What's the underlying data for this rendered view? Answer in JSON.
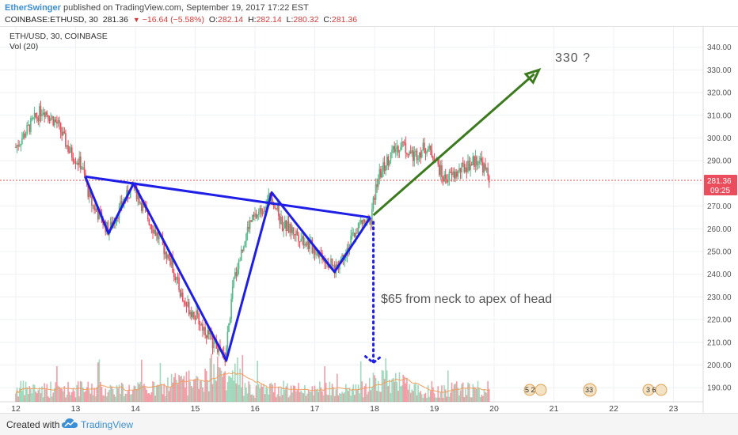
{
  "header": {
    "author": "EtherSwinger",
    "published_text": "published on TradingView.com, September 19, 2017 17:22 EST",
    "symbol": "COINBASE:ETHUSD, 30",
    "last": "281.36",
    "change": "−16.64 (−5.58%)",
    "o_label": "O:",
    "o_val": "282.14",
    "h_label": "H:",
    "h_val": "282.14",
    "l_label": "L:",
    "l_val": "280.32",
    "c_label": "C:",
    "c_val": "281.36"
  },
  "legend": {
    "title": "ETH/USD, 30, COINBASE",
    "vol": "Vol (20)"
  },
  "price_axis": {
    "ticks": [
      "340.00",
      "330.00",
      "320.00",
      "310.00",
      "300.00",
      "290.00",
      "280.00",
      "270.00",
      "260.00",
      "250.00",
      "240.00",
      "230.00",
      "220.00",
      "210.00",
      "200.00",
      "190.00"
    ],
    "last_price": "281.36",
    "countdown": "09:25"
  },
  "time_axis": {
    "ticks": [
      "12",
      "13",
      "14",
      "15",
      "16",
      "17",
      "18",
      "19",
      "20",
      "21",
      "22",
      "23"
    ]
  },
  "annotations": {
    "target": "330 ?",
    "measure": "$65 from neck to apex of head"
  },
  "events": {
    "e1": "5 2",
    "e2": "33",
    "e3": "3 6"
  },
  "footer": {
    "created_with": "Created with",
    "brand": "TradingView"
  },
  "colors": {
    "up": "#53b987",
    "down": "#eb4d5c",
    "pattern": "#1e1ee6",
    "arrow": "#3c7a1e",
    "measure": "#1e1ee6"
  },
  "chart_data": {
    "type": "candlestick",
    "title": "ETH/USD, 30, COINBASE",
    "x": [
      "12",
      "13",
      "14",
      "15",
      "16",
      "17",
      "18",
      "19",
      "20",
      "21",
      "22",
      "23"
    ],
    "ylim": [
      180,
      345
    ],
    "pattern_points": [
      {
        "x": 13.16,
        "y": 283
      },
      {
        "x": 13.55,
        "y": 258
      },
      {
        "x": 13.97,
        "y": 280
      },
      {
        "x": 15.52,
        "y": 202
      },
      {
        "x": 16.28,
        "y": 276
      },
      {
        "x": 17.33,
        "y": 241
      },
      {
        "x": 17.93,
        "y": 265
      }
    ],
    "neckline": [
      {
        "x": 13.16,
        "y": 283
      },
      {
        "x": 17.93,
        "y": 265
      }
    ],
    "target_arrow": [
      {
        "x": 17.98,
        "y": 266
      },
      {
        "x": 20.75,
        "y": 330
      }
    ],
    "measure_line": {
      "x": 17.98,
      "y_from": 263,
      "y_to": 201
    }
  }
}
